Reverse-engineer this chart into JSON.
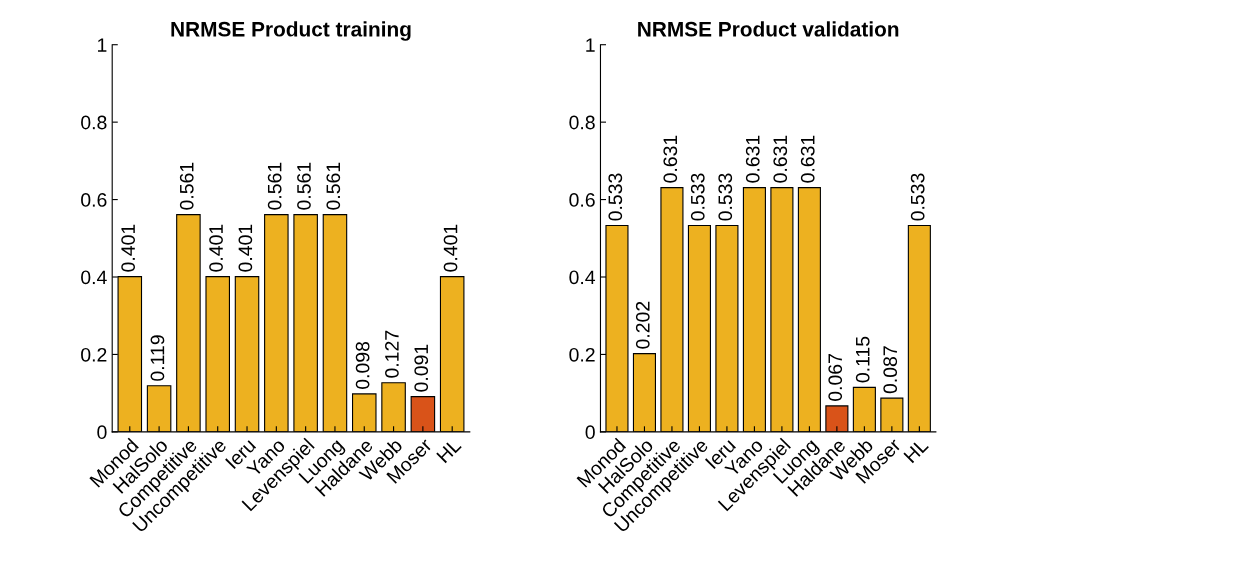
{
  "chart_data": [
    {
      "type": "bar",
      "title": "NRMSE Product training",
      "categories": [
        "Monod",
        "HalSolo",
        "Competitive",
        "Uncompetitive",
        "Ieru",
        "Yano",
        "Levenspiel",
        "Luong",
        "Haldane",
        "Webb",
        "Moser",
        "HL"
      ],
      "values": [
        0.401,
        0.119,
        0.561,
        0.401,
        0.401,
        0.561,
        0.561,
        0.561,
        0.098,
        0.127,
        0.091,
        0.401
      ],
      "colors": [
        "#edb120",
        "#edb120",
        "#edb120",
        "#edb120",
        "#edb120",
        "#edb120",
        "#edb120",
        "#edb120",
        "#edb120",
        "#edb120",
        "#d95319",
        "#edb120"
      ],
      "ylim": [
        0,
        1
      ],
      "yticks": [
        0,
        0.2,
        0.4,
        0.6,
        0.8,
        1
      ],
      "data_labels": true,
      "grid": false,
      "legend": false
    },
    {
      "type": "bar",
      "title": "NRMSE Product validation",
      "categories": [
        "Monod",
        "HalSolo",
        "Competitive",
        "Uncompetitive",
        "Ieru",
        "Yano",
        "Levenspiel",
        "Luong",
        "Haldane",
        "Webb",
        "Moser",
        "HL"
      ],
      "values": [
        0.533,
        0.202,
        0.631,
        0.533,
        0.533,
        0.631,
        0.631,
        0.631,
        0.067,
        0.115,
        0.087,
        0.533
      ],
      "colors": [
        "#edb120",
        "#edb120",
        "#edb120",
        "#edb120",
        "#edb120",
        "#edb120",
        "#edb120",
        "#edb120",
        "#d95319",
        "#edb120",
        "#edb120",
        "#edb120"
      ],
      "ylim": [
        0,
        1
      ],
      "yticks": [
        0,
        0.2,
        0.4,
        0.6,
        0.8,
        1
      ],
      "data_labels": true,
      "grid": false,
      "legend": false
    }
  ]
}
